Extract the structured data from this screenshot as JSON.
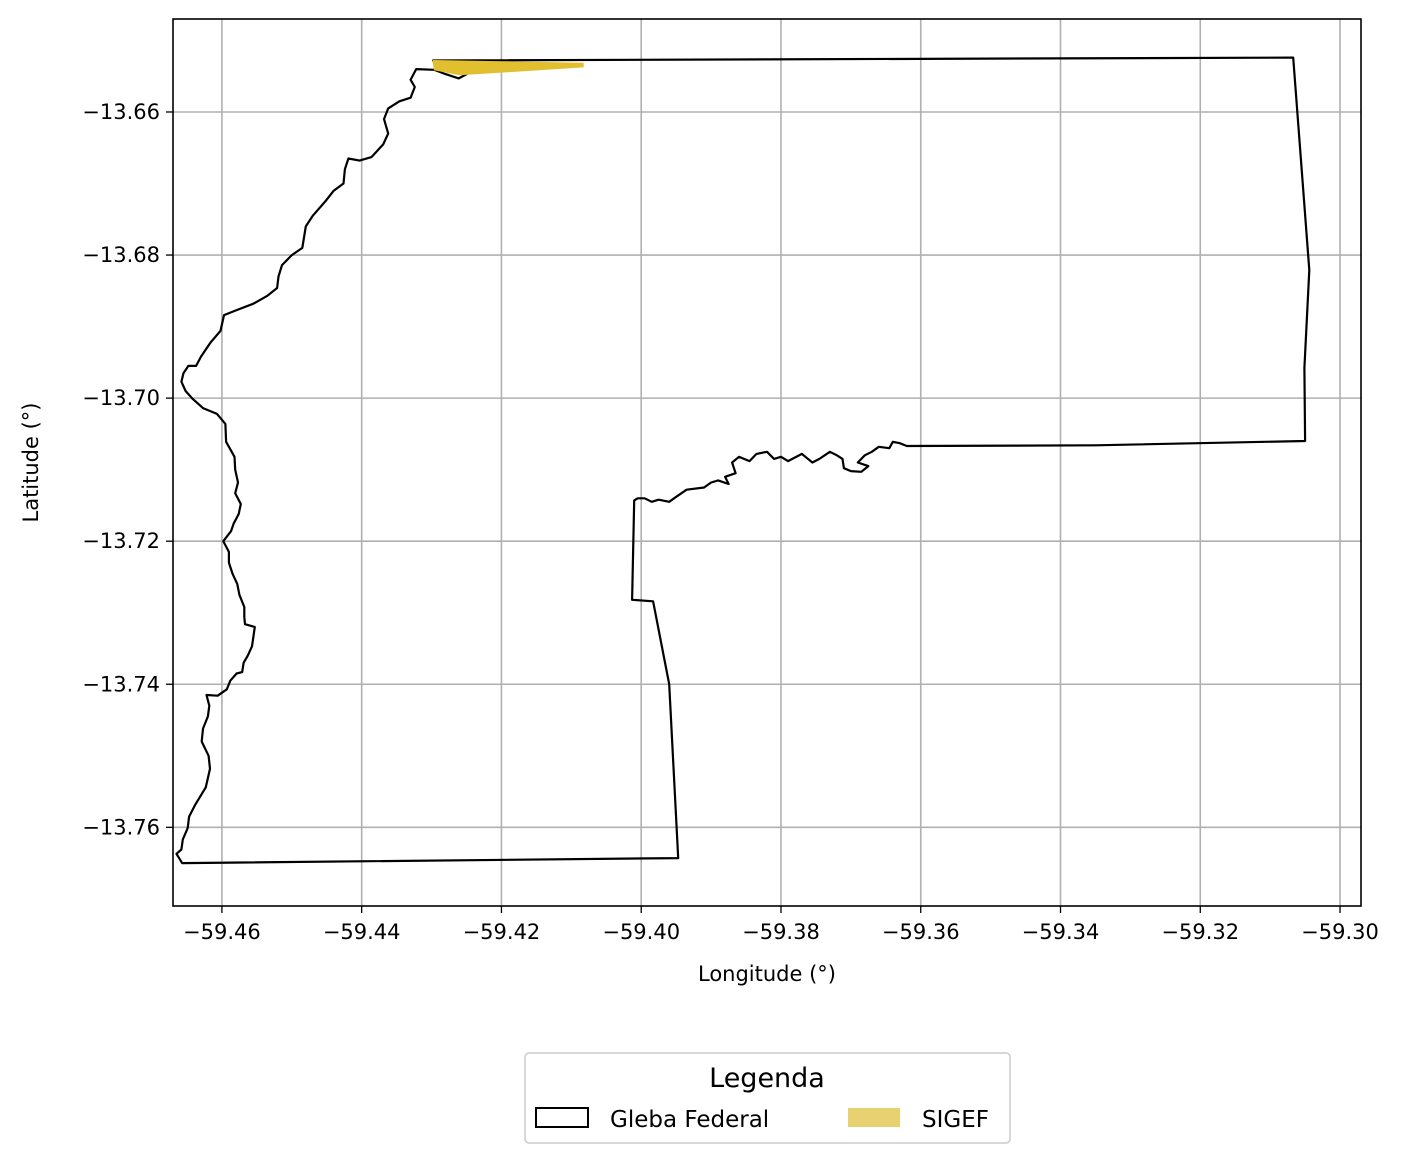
{
  "chart_data": {
    "type": "map",
    "xlabel": "Longitude (°)",
    "ylabel": "Latitude (°)",
    "xlim": [
      -59.467,
      -59.297
    ],
    "ylim": [
      -13.771,
      -13.647
    ],
    "grid": true,
    "xticks": [
      -59.46,
      -59.44,
      -59.42,
      -59.4,
      -59.38,
      -59.36,
      -59.34,
      -59.32,
      -59.3
    ],
    "xtick_labels": [
      "−59.46",
      "−59.44",
      "−59.42",
      "−59.40",
      "−59.38",
      "−59.36",
      "−59.34",
      "−59.32",
      "−59.30"
    ],
    "yticks": [
      -13.66,
      -13.68,
      -13.7,
      -13.72,
      -13.74,
      -13.76
    ],
    "ytick_labels": [
      "−13.66",
      "−13.68",
      "−13.70",
      "−13.72",
      "−13.74",
      "−13.76"
    ],
    "legend": {
      "title": "Legenda",
      "placement": "below",
      "entries": [
        {
          "label": "Gleba Federal",
          "style": "outline",
          "color": "#000000"
        },
        {
          "label": "SIGEF",
          "style": "fill",
          "color": "#e8d170"
        }
      ]
    },
    "layers": [
      {
        "name": "Gleba Federal",
        "style": "outline",
        "stroke": "#000000",
        "coordinates": [
          [
            -59.4298,
            -13.6528
          ],
          [
            -59.3067,
            -13.6524
          ],
          [
            -59.3044,
            -13.6821
          ],
          [
            -59.3051,
            -13.6958
          ],
          [
            -59.305,
            -13.706
          ],
          [
            -59.335,
            -13.7066
          ],
          [
            -59.362,
            -13.7067
          ],
          [
            -59.363,
            -13.7063
          ],
          [
            -59.364,
            -13.7061
          ],
          [
            -59.3645,
            -13.707
          ],
          [
            -59.366,
            -13.7068
          ],
          [
            -59.367,
            -13.7075
          ],
          [
            -59.368,
            -13.708
          ],
          [
            -59.369,
            -13.709
          ],
          [
            -59.3675,
            -13.7095
          ],
          [
            -59.3685,
            -13.7103
          ],
          [
            -59.37,
            -13.7102
          ],
          [
            -59.371,
            -13.7098
          ],
          [
            -59.3712,
            -13.7085
          ],
          [
            -59.372,
            -13.708
          ],
          [
            -59.373,
            -13.7075
          ],
          [
            -59.3745,
            -13.7085
          ],
          [
            -59.3755,
            -13.709
          ],
          [
            -59.3765,
            -13.7082
          ],
          [
            -59.377,
            -13.7078
          ],
          [
            -59.379,
            -13.7088
          ],
          [
            -59.38,
            -13.7082
          ],
          [
            -59.381,
            -13.7085
          ],
          [
            -59.382,
            -13.7075
          ],
          [
            -59.3835,
            -13.7078
          ],
          [
            -59.3845,
            -13.7088
          ],
          [
            -59.386,
            -13.7082
          ],
          [
            -59.387,
            -13.709
          ],
          [
            -59.3865,
            -13.7105
          ],
          [
            -59.388,
            -13.711
          ],
          [
            -59.3875,
            -13.712
          ],
          [
            -59.389,
            -13.7115
          ],
          [
            -59.39,
            -13.7118
          ],
          [
            -59.391,
            -13.7125
          ],
          [
            -59.3935,
            -13.7128
          ],
          [
            -59.395,
            -13.7138
          ],
          [
            -59.396,
            -13.7145
          ],
          [
            -59.3975,
            -13.7142
          ],
          [
            -59.3985,
            -13.7145
          ],
          [
            -59.3995,
            -13.714
          ],
          [
            -59.4005,
            -13.714
          ],
          [
            -59.401,
            -13.7143
          ],
          [
            -59.4013,
            -13.7282
          ],
          [
            -59.3983,
            -13.7284
          ],
          [
            -59.396,
            -13.74
          ],
          [
            -59.3947,
            -13.7643
          ],
          [
            -59.4657,
            -13.765
          ],
          [
            -59.4665,
            -13.7637
          ],
          [
            -59.4658,
            -13.7631
          ],
          [
            -59.4656,
            -13.7617
          ],
          [
            -59.4649,
            -13.7601
          ],
          [
            -59.4647,
            -13.7585
          ],
          [
            -59.4638,
            -13.7568
          ],
          [
            -59.4623,
            -13.7544
          ],
          [
            -59.4617,
            -13.7518
          ],
          [
            -59.4619,
            -13.75
          ],
          [
            -59.4629,
            -13.748
          ],
          [
            -59.4627,
            -13.7462
          ],
          [
            -59.462,
            -13.7445
          ],
          [
            -59.4618,
            -13.743
          ],
          [
            -59.4622,
            -13.7415
          ],
          [
            -59.4606,
            -13.7416
          ],
          [
            -59.4593,
            -13.7407
          ],
          [
            -59.4588,
            -13.7395
          ],
          [
            -59.4579,
            -13.7385
          ],
          [
            -59.4571,
            -13.7383
          ],
          [
            -59.4569,
            -13.737
          ],
          [
            -59.4563,
            -13.736
          ],
          [
            -59.4557,
            -13.7347
          ],
          [
            -59.4553,
            -13.732
          ],
          [
            -59.4567,
            -13.7316
          ],
          [
            -59.4568,
            -13.7306
          ],
          [
            -59.4568,
            -13.7292
          ],
          [
            -59.4575,
            -13.7275
          ],
          [
            -59.4578,
            -13.726
          ],
          [
            -59.4585,
            -13.7245
          ],
          [
            -59.459,
            -13.723
          ],
          [
            -59.459,
            -13.7215
          ],
          [
            -59.4598,
            -13.72
          ],
          [
            -59.4587,
            -13.7186
          ],
          [
            -59.4583,
            -13.7175
          ],
          [
            -59.4576,
            -13.7162
          ],
          [
            -59.4573,
            -13.7148
          ],
          [
            -59.4581,
            -13.7133
          ],
          [
            -59.4577,
            -13.7118
          ],
          [
            -59.4581,
            -13.71
          ],
          [
            -59.4582,
            -13.7082
          ],
          [
            -59.4594,
            -13.7061
          ],
          [
            -59.4595,
            -13.7036
          ],
          [
            -59.4607,
            -13.7022
          ],
          [
            -59.4627,
            -13.7014
          ],
          [
            -59.4642,
            -13.7001
          ],
          [
            -59.4652,
            -13.699
          ],
          [
            -59.4658,
            -13.6977
          ],
          [
            -59.4655,
            -13.6965
          ],
          [
            -59.4648,
            -13.6955
          ],
          [
            -59.4637,
            -13.6955
          ],
          [
            -59.463,
            -13.6942
          ],
          [
            -59.4616,
            -13.6922
          ],
          [
            -59.4602,
            -13.6906
          ],
          [
            -59.4597,
            -13.6884
          ],
          [
            -59.4579,
            -13.6877
          ],
          [
            -59.4555,
            -13.6868
          ],
          [
            -59.4535,
            -13.6857
          ],
          [
            -59.4521,
            -13.6846
          ],
          [
            -59.4519,
            -13.683
          ],
          [
            -59.4514,
            -13.6814
          ],
          [
            -59.45,
            -13.68
          ],
          [
            -59.4485,
            -13.679
          ],
          [
            -59.448,
            -13.676
          ],
          [
            -59.447,
            -13.6745
          ],
          [
            -59.4452,
            -13.6725
          ],
          [
            -59.444,
            -13.671
          ],
          [
            -59.4426,
            -13.67
          ],
          [
            -59.4424,
            -13.668
          ],
          [
            -59.4419,
            -13.6665
          ],
          [
            -59.4403,
            -13.6668
          ],
          [
            -59.4386,
            -13.6663
          ],
          [
            -59.4369,
            -13.6645
          ],
          [
            -59.4362,
            -13.663
          ],
          [
            -59.4368,
            -13.661
          ],
          [
            -59.4362,
            -13.6595
          ],
          [
            -59.4346,
            -13.6585
          ],
          [
            -59.433,
            -13.658
          ],
          [
            -59.4324,
            -13.6565
          ],
          [
            -59.433,
            -13.6555
          ],
          [
            -59.4322,
            -13.654
          ],
          [
            -59.4296,
            -13.6541
          ],
          [
            -59.428,
            -13.6547
          ],
          [
            -59.4261,
            -13.6553
          ],
          [
            -59.4246,
            -13.6545
          ],
          [
            -59.423,
            -13.6542
          ],
          [
            -59.4237,
            -13.6535
          ],
          [
            -59.426,
            -13.6532
          ],
          [
            -59.4298,
            -13.6528
          ]
        ]
      },
      {
        "name": "SIGEF",
        "style": "fill",
        "fill": "#e2bf2e",
        "coordinates": [
          [
            -59.4298,
            -13.6528
          ],
          [
            -59.4083,
            -13.6532
          ],
          [
            -59.4083,
            -13.6537
          ],
          [
            -59.426,
            -13.6548
          ],
          [
            -59.4296,
            -13.6541
          ]
        ]
      }
    ]
  }
}
